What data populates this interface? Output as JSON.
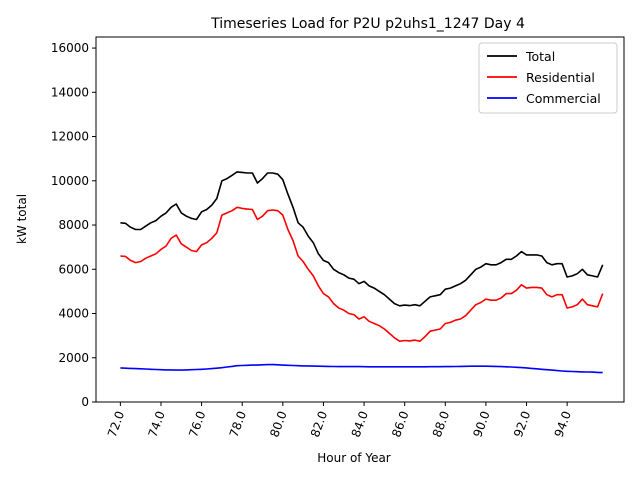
{
  "chart_data": {
    "type": "line",
    "title": "Timeseries Load for P2U p2uhs1_1247  Day 4",
    "xlabel": "Hour of Year",
    "ylabel": "kW total",
    "xlim": [
      70.8,
      96.8
    ],
    "ylim": [
      0,
      16500
    ],
    "x_ticks": [
      72,
      74,
      76,
      78,
      80,
      82,
      84,
      86,
      88,
      90,
      92,
      94
    ],
    "x_tick_labels": [
      "72.0",
      "74.0",
      "76.0",
      "78.0",
      "80.0",
      "82.0",
      "84.0",
      "86.0",
      "88.0",
      "90.0",
      "92.0",
      "94.0"
    ],
    "y_ticks": [
      0,
      2000,
      4000,
      6000,
      8000,
      10000,
      12000,
      14000,
      16000
    ],
    "y_tick_labels": [
      "0",
      "2000",
      "4000",
      "6000",
      "8000",
      "10000",
      "12000",
      "14000",
      "16000"
    ],
    "grid": false,
    "legend_position": "top-right",
    "x": [
      72.0,
      72.25,
      72.5,
      72.75,
      73.0,
      73.25,
      73.5,
      73.75,
      74.0,
      74.25,
      74.5,
      74.75,
      75.0,
      75.25,
      75.5,
      75.75,
      76.0,
      76.25,
      76.5,
      76.75,
      77.0,
      77.25,
      77.5,
      77.75,
      78.0,
      78.25,
      78.5,
      78.75,
      79.0,
      79.25,
      79.5,
      79.75,
      80.0,
      80.25,
      80.5,
      80.75,
      81.0,
      81.25,
      81.5,
      81.75,
      82.0,
      82.25,
      82.5,
      82.75,
      83.0,
      83.25,
      83.5,
      83.75,
      84.0,
      84.25,
      84.5,
      84.75,
      85.0,
      85.25,
      85.5,
      85.75,
      86.0,
      86.25,
      86.5,
      86.75,
      87.0,
      87.25,
      87.5,
      87.75,
      88.0,
      88.25,
      88.5,
      88.75,
      89.0,
      89.25,
      89.5,
      89.75,
      90.0,
      90.25,
      90.5,
      90.75,
      91.0,
      91.25,
      91.5,
      91.75,
      92.0,
      92.25,
      92.5,
      92.75,
      93.0,
      93.25,
      93.5,
      93.75,
      94.0,
      94.25,
      94.5,
      94.75,
      95.0,
      95.25,
      95.5,
      95.75
    ],
    "series": [
      {
        "name": "Total",
        "color": "#000000",
        "values": [
          8100,
          8080,
          7900,
          7800,
          7800,
          7950,
          8100,
          8200,
          8400,
          8550,
          8800,
          8950,
          8550,
          8400,
          8300,
          8250,
          8600,
          8700,
          8900,
          9200,
          10000,
          10100,
          10250,
          10400,
          10380,
          10350,
          10350,
          9900,
          10100,
          10350,
          10350,
          10300,
          10050,
          9400,
          8800,
          8100,
          7900,
          7500,
          7200,
          6700,
          6400,
          6300,
          6000,
          5850,
          5750,
          5600,
          5550,
          5350,
          5450,
          5250,
          5150,
          5000,
          4850,
          4650,
          4450,
          4350,
          4380,
          4360,
          4400,
          4350,
          4550,
          4750,
          4800,
          4850,
          5100,
          5150,
          5250,
          5350,
          5500,
          5750,
          6000,
          6100,
          6250,
          6200,
          6200,
          6300,
          6450,
          6450,
          6600,
          6800,
          6650,
          6650,
          6650,
          6600,
          6300,
          6200,
          6250,
          6250,
          5650,
          5700,
          5800,
          6000,
          5750,
          5700,
          5650,
          6200
        ]
      },
      {
        "name": "Residential",
        "color": "#ff0000",
        "values": [
          6600,
          6580,
          6400,
          6300,
          6350,
          6500,
          6600,
          6700,
          6900,
          7050,
          7400,
          7550,
          7150,
          7000,
          6850,
          6800,
          7100,
          7200,
          7400,
          7650,
          8450,
          8550,
          8650,
          8800,
          8750,
          8720,
          8700,
          8250,
          8400,
          8650,
          8680,
          8650,
          8450,
          7800,
          7300,
          6600,
          6350,
          6000,
          5700,
          5250,
          4900,
          4750,
          4450,
          4250,
          4150,
          4000,
          3950,
          3750,
          3850,
          3650,
          3550,
          3450,
          3300,
          3100,
          2900,
          2750,
          2780,
          2760,
          2800,
          2750,
          2950,
          3200,
          3250,
          3300,
          3550,
          3600,
          3700,
          3750,
          3900,
          4150,
          4400,
          4500,
          4650,
          4600,
          4600,
          4700,
          4900,
          4900,
          5050,
          5300,
          5150,
          5180,
          5180,
          5150,
          4850,
          4750,
          4850,
          4850,
          4250,
          4300,
          4400,
          4650,
          4400,
          4350,
          4300,
          4900
        ]
      },
      {
        "name": "Commercial",
        "color": "#0000ff",
        "values": [
          1540,
          1530,
          1520,
          1510,
          1500,
          1490,
          1480,
          1470,
          1460,
          1450,
          1450,
          1440,
          1440,
          1450,
          1460,
          1470,
          1480,
          1490,
          1510,
          1530,
          1550,
          1580,
          1610,
          1640,
          1650,
          1660,
          1670,
          1670,
          1680,
          1690,
          1690,
          1680,
          1670,
          1660,
          1650,
          1640,
          1630,
          1630,
          1625,
          1620,
          1615,
          1610,
          1605,
          1600,
          1600,
          1600,
          1600,
          1600,
          1595,
          1590,
          1590,
          1590,
          1590,
          1590,
          1590,
          1590,
          1590,
          1590,
          1590,
          1590,
          1590,
          1595,
          1595,
          1595,
          1600,
          1600,
          1605,
          1610,
          1615,
          1620,
          1620,
          1620,
          1620,
          1615,
          1610,
          1600,
          1590,
          1580,
          1570,
          1555,
          1540,
          1520,
          1500,
          1480,
          1460,
          1440,
          1420,
          1400,
          1390,
          1380,
          1370,
          1360,
          1355,
          1350,
          1340,
          1330
        ]
      }
    ]
  }
}
